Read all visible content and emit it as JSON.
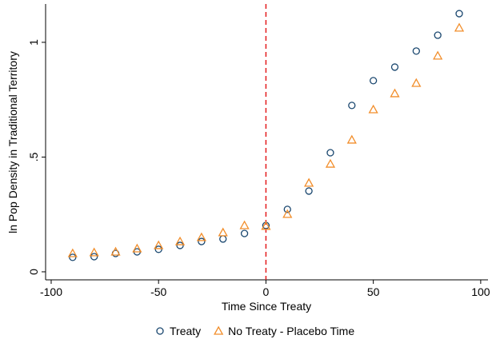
{
  "chart_data": {
    "type": "scatter",
    "xlabel": "Time Since Treaty",
    "ylabel": "ln Pop Density in Traditional Territory",
    "x": [
      -90,
      -80,
      -70,
      -60,
      -50,
      -40,
      -30,
      -20,
      -10,
      0,
      10,
      20,
      30,
      40,
      50,
      60,
      70,
      80,
      90
    ],
    "series": [
      {
        "name": "Treaty",
        "color": "#1a476f",
        "marker": "circle",
        "values": [
          0.063,
          0.066,
          0.08,
          0.087,
          0.098,
          0.115,
          0.132,
          0.143,
          0.167,
          0.202,
          0.272,
          0.352,
          0.519,
          0.725,
          0.833,
          0.892,
          0.962,
          1.031,
          1.125
        ]
      },
      {
        "name": "No Treaty - Placebo Time",
        "color": "#f28e2b",
        "marker": "triangle",
        "values": [
          0.08,
          0.084,
          0.087,
          0.101,
          0.115,
          0.132,
          0.15,
          0.171,
          0.202,
          0.199,
          0.251,
          0.387,
          0.47,
          0.575,
          0.707,
          0.777,
          0.822,
          0.941,
          1.063
        ]
      }
    ],
    "xlim": [
      -102.6,
      103.4
    ],
    "ylim": [
      -0.035,
      1.167
    ],
    "xticks": [
      -100,
      -50,
      0,
      50,
      100
    ],
    "yticks": [
      0,
      {
        "value": 0.5,
        "label": ".5"
      },
      1
    ],
    "reference_line": {
      "x": 0,
      "color": "#e41a1c"
    },
    "legend": "bottom"
  }
}
